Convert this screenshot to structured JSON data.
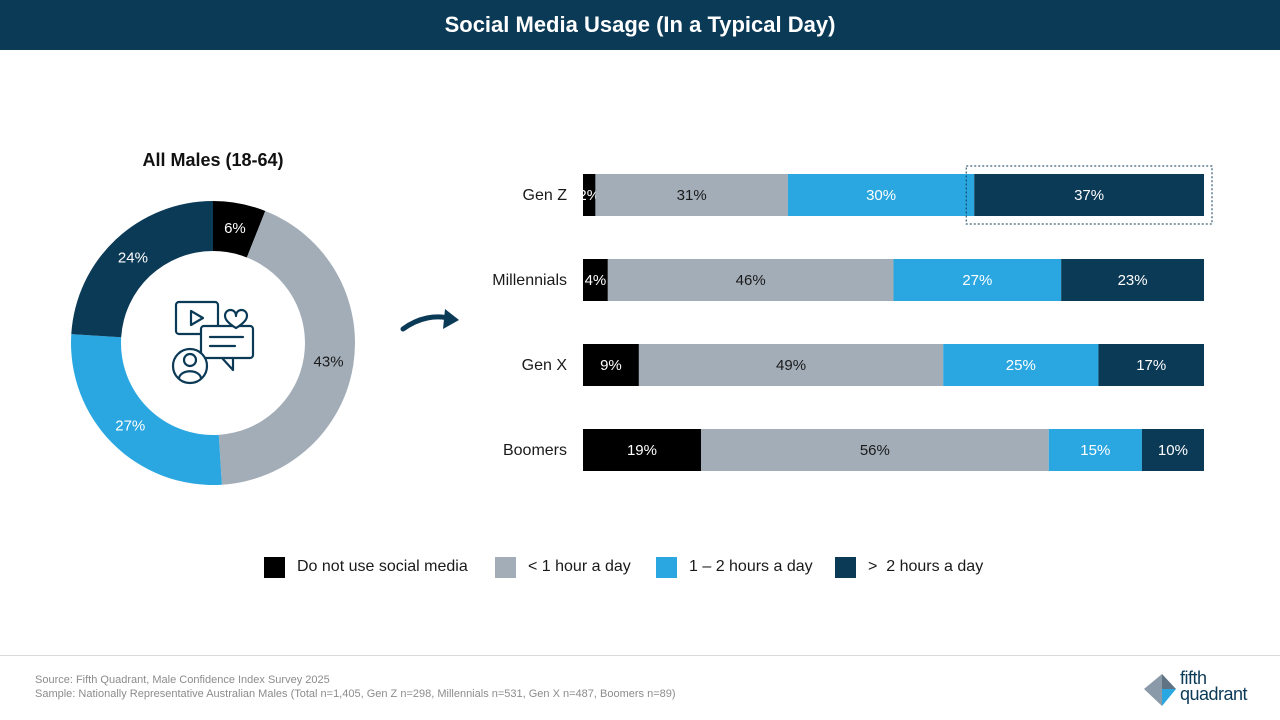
{
  "header": {
    "title": "Social Media Usage (In a Typical Day)"
  },
  "colors": {
    "header_bg": "#0b3a57",
    "none": "#000000",
    "lt1": "#a3adb8",
    "one_two": "#2aa7e1",
    "gt2": "#0b3a57",
    "icon": "#0b3a57"
  },
  "chart_data": [
    {
      "type": "pie",
      "variant": "donut",
      "title": "All Males (18-64)",
      "categories": [
        "Do not use social media",
        "< 1 hour a day",
        "1 – 2 hours a day",
        ">  2 hours a day"
      ],
      "values": [
        6,
        43,
        27,
        24
      ],
      "labels": [
        "6%",
        "43%",
        "27%",
        "24%"
      ],
      "center_icon": "social-media-icon"
    },
    {
      "type": "bar",
      "orientation": "horizontal",
      "stacked": true,
      "categories": [
        "Gen Z",
        "Millennials",
        "Gen X",
        "Boomers"
      ],
      "series": [
        {
          "name": "Do not use social media",
          "values": [
            2,
            4,
            9,
            19
          ],
          "labels": [
            "2%",
            "4%",
            "9%",
            "19%"
          ]
        },
        {
          "name": "< 1 hour a day",
          "values": [
            31,
            46,
            49,
            56
          ],
          "labels": [
            "31%",
            "46%",
            "49%",
            "56%"
          ]
        },
        {
          "name": "1 – 2 hours a day",
          "values": [
            30,
            27,
            25,
            15
          ],
          "labels": [
            "30%",
            "27%",
            "25%",
            "15%"
          ]
        },
        {
          "name": ">  2 hours a day",
          "values": [
            37,
            23,
            17,
            10
          ],
          "labels": [
            "37%",
            "23%",
            "17%",
            "10%"
          ]
        }
      ],
      "highlight": {
        "category": "Gen Z",
        "series": ">  2 hours a day"
      },
      "xlim": [
        0,
        100
      ]
    }
  ],
  "legend": [
    {
      "label": "Do not use social media",
      "color": "#000000"
    },
    {
      "label": "< 1 hour a day",
      "color": "#a3adb8"
    },
    {
      "label": "1 – 2 hours a day",
      "color": "#2aa7e1"
    },
    {
      "label": ">  2 hours a day",
      "color": "#0b3a57"
    }
  ],
  "footer": {
    "source": "Source: Fifth Quadrant, Male Confidence Index Survey 2025",
    "sample": "Sample: Nationally Representative Australian Males (Total n=1,405, Gen Z n=298, Millennials n=531, Gen X n=487, Boomers n=89)"
  },
  "logo": {
    "line1": "fifth",
    "line2": "quadrant"
  }
}
